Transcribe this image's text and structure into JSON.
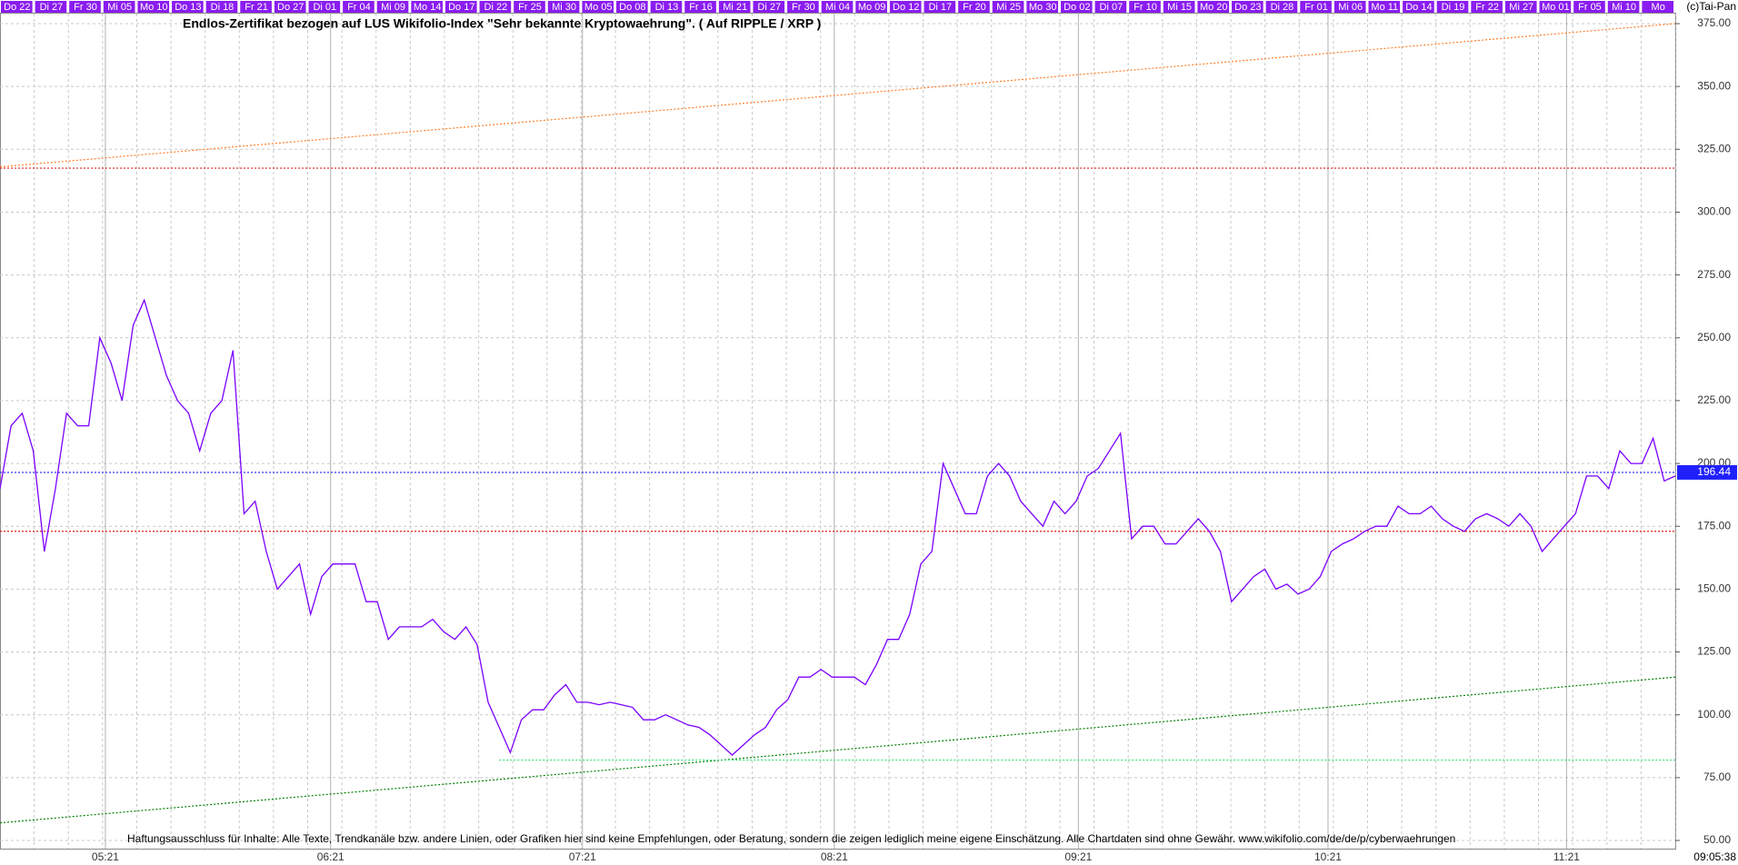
{
  "chart_data": {
    "type": "line",
    "title": "Endlos-Zertifikat bezogen auf LUS Wikifolio-Index \"Sehr bekannte Kryptowaehrung\". ( Auf RIPPLE / XRP )",
    "disclaimer": "Haftungsausschluss für Inhalte: Alle Texte, Trendkanäle bzw. andere Linien, oder Grafiken hier sind keine Empfehlungen, oder Beratung, sondern die zeigen lediglich meine eigene Einschätzung. Alle Chartdaten sind ohne Gewähr.  www.wikifolio.com/de/de/p/cyberwaehrungen",
    "copyright": "(c)Tai-Pan",
    "time": "09:05:38",
    "color": "#7b00ff",
    "date_labels": [
      "Do 22",
      "Di 27",
      "Fr 30",
      "Mi 05",
      "Mo 10",
      "Do 13",
      "Di 18",
      "Fr 21",
      "Do 27",
      "Di 01",
      "Fr 04",
      "Mi 09",
      "Mo 14",
      "Do 17",
      "Di 22",
      "Fr 25",
      "Mi 30",
      "Mo 05",
      "Do 08",
      "Di 13",
      "Fr 16",
      "Mi 21",
      "Di 27",
      "Fr 30",
      "Mi 04",
      "Mo 09",
      "Do 12",
      "Di 17",
      "Fr 20",
      "Mi 25",
      "Mo 30",
      "Do 02",
      "Di 07",
      "Fr 10",
      "Mi 15",
      "Mo 20",
      "Do 23",
      "Di 28",
      "Fr 01",
      "Mi 06",
      "Mo 11",
      "Do 14",
      "Di 19",
      "Fr 22",
      "Mi 27",
      "Mo 01",
      "Fr 05",
      "Mi 10",
      "Mo"
    ],
    "x": [
      0,
      1,
      2,
      3,
      4,
      5,
      6,
      7,
      8,
      9,
      10,
      11,
      12,
      13,
      14,
      15,
      16,
      17,
      18,
      19,
      20,
      21,
      22,
      23,
      24,
      25,
      26,
      27,
      28,
      29,
      30,
      31,
      32,
      33,
      34,
      35,
      36,
      37,
      38,
      39,
      40,
      41,
      42,
      43,
      44,
      45,
      46,
      47,
      48,
      49,
      50,
      51,
      52,
      53,
      54,
      55,
      56,
      57,
      58,
      59,
      60,
      61,
      62,
      63,
      64,
      65,
      66,
      67,
      68,
      69,
      70,
      71,
      72,
      73,
      74,
      75,
      76,
      77,
      78,
      79,
      80,
      81,
      82,
      83,
      84,
      85,
      86,
      87,
      88,
      89,
      90,
      91,
      92,
      93,
      94,
      95,
      96,
      97,
      98,
      99,
      100,
      101,
      102,
      103,
      104,
      105,
      106,
      107,
      108,
      109,
      110,
      111,
      112,
      113,
      114,
      115,
      116,
      117,
      118,
      119,
      120,
      121,
      122,
      123,
      124,
      125,
      126,
      127,
      128,
      129,
      130,
      131,
      132,
      133,
      134,
      135,
      136,
      137,
      138,
      139,
      140,
      141,
      142,
      143,
      144,
      145,
      146,
      147,
      148,
      149,
      150,
      151
    ],
    "values": [
      190,
      215,
      220,
      205,
      165,
      190,
      220,
      215,
      215,
      250,
      240,
      225,
      255,
      265,
      250,
      235,
      225,
      220,
      205,
      220,
      225,
      245,
      180,
      185,
      165,
      150,
      155,
      160,
      140,
      155,
      160,
      160,
      160,
      145,
      145,
      130,
      135,
      135,
      135,
      138,
      133,
      130,
      135,
      128,
      105,
      95,
      85,
      98,
      102,
      102,
      108,
      112,
      105,
      105,
      104,
      105,
      104,
      103,
      98,
      98,
      100,
      98,
      96,
      95,
      92,
      88,
      84,
      88,
      92,
      95,
      102,
      106,
      115,
      115,
      118,
      115,
      115,
      115,
      112,
      120,
      130,
      130,
      140,
      160,
      165,
      200,
      190,
      180,
      180,
      195,
      200,
      195,
      185,
      180,
      175,
      185,
      180,
      185,
      195,
      198,
      205,
      212,
      170,
      175,
      175,
      168,
      168,
      173,
      178,
      173,
      165,
      145,
      150,
      155,
      158,
      150,
      152,
      148,
      150,
      155,
      165,
      168,
      170,
      173,
      175,
      175,
      183,
      180,
      180,
      183,
      178,
      175,
      173,
      178,
      180,
      178,
      175,
      180,
      175,
      165,
      170,
      175,
      180,
      195,
      195,
      190,
      205,
      200,
      200,
      210,
      193,
      195
    ],
    "xlim": [
      0,
      151
    ],
    "xticks": [
      {
        "value": 9.5,
        "label": "05:21"
      },
      {
        "value": 29.8,
        "label": "06:21"
      },
      {
        "value": 52.5,
        "label": "07:21"
      },
      {
        "value": 75.2,
        "label": "08:21"
      },
      {
        "value": 97.2,
        "label": "09:21"
      },
      {
        "value": 119.7,
        "label": "10:21"
      },
      {
        "value": 141.2,
        "label": "11:21"
      }
    ],
    "ylim": [
      50,
      375
    ],
    "yticks": [
      {
        "value": 50,
        "label": "50.00"
      },
      {
        "value": 75,
        "label": "75.00"
      },
      {
        "value": 100,
        "label": "100.00"
      },
      {
        "value": 125,
        "label": "125.00"
      },
      {
        "value": 150,
        "label": "150.00"
      },
      {
        "value": 175,
        "label": "175.00"
      },
      {
        "value": 200,
        "label": "200.00"
      },
      {
        "value": 225,
        "label": "225.00"
      },
      {
        "value": 250,
        "label": "250.00"
      },
      {
        "value": 275,
        "label": "275.00"
      },
      {
        "value": 300,
        "label": "300.00"
      },
      {
        "value": 325,
        "label": "325.00"
      },
      {
        "value": 350,
        "label": "350.00"
      },
      {
        "value": 375,
        "label": "375.00"
      }
    ],
    "grid": true,
    "reference_lines": [
      {
        "color": "#ff7f27",
        "x": [
          0,
          151
        ],
        "y": [
          318,
          375
        ]
      },
      {
        "color": "#e02020",
        "x": [
          0,
          151
        ],
        "y": [
          317.5,
          317.5
        ]
      },
      {
        "color": "#e02020",
        "x": [
          0,
          151
        ],
        "y": [
          173,
          173
        ]
      },
      {
        "color": "#2020ff",
        "x": [
          0,
          151
        ],
        "y": [
          196.44,
          196.44
        ]
      },
      {
        "color": "#008000",
        "x": [
          0,
          151
        ],
        "y": [
          57,
          115
        ]
      },
      {
        "color": "#40e080",
        "x": [
          45,
          151
        ],
        "y": [
          82,
          82
        ]
      }
    ]
  }
}
